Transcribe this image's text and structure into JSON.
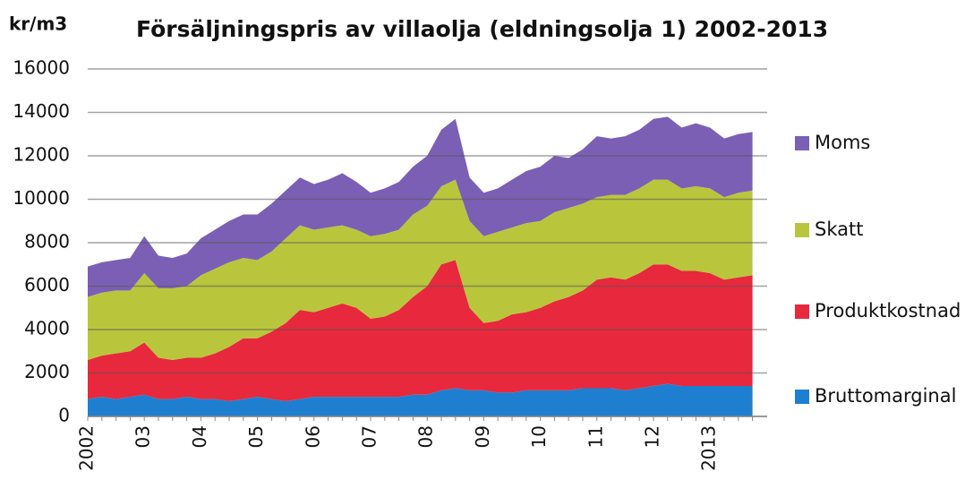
{
  "chart_data": {
    "type": "stacked_area",
    "title": "Försäljningspris av villaolja (eldningsolja 1) 2002-2013",
    "y_label": "kr/m3",
    "categories": [
      "2002",
      null,
      null,
      null,
      "03",
      null,
      null,
      null,
      "04",
      null,
      null,
      null,
      "05",
      null,
      null,
      null,
      "06",
      null,
      null,
      null,
      "07",
      null,
      null,
      null,
      "08",
      null,
      null,
      null,
      "09",
      null,
      null,
      null,
      "10",
      null,
      null,
      null,
      "11",
      null,
      null,
      null,
      "12",
      null,
      null,
      null,
      "2013",
      null,
      null,
      null
    ],
    "series": [
      {
        "name": "Bruttomarginal",
        "color": "#1e7fd0",
        "values": [
          800,
          900,
          800,
          900,
          1000,
          800,
          800,
          900,
          800,
          800,
          700,
          800,
          900,
          800,
          700,
          800,
          900,
          900,
          900,
          900,
          900,
          900,
          900,
          1000,
          1000,
          1200,
          1300,
          1200,
          1200,
          1100,
          1100,
          1200,
          1200,
          1200,
          1200,
          1300,
          1300,
          1300,
          1200,
          1300,
          1400,
          1500,
          1400,
          1400,
          1400,
          1400,
          1400,
          1400
        ]
      },
      {
        "name": "Produktkostnad",
        "color": "#e8283c",
        "values": [
          1800,
          1900,
          2100,
          2100,
          2400,
          1900,
          1800,
          1800,
          1900,
          2100,
          2500,
          2800,
          2700,
          3100,
          3600,
          4100,
          3900,
          4100,
          4300,
          4100,
          3600,
          3700,
          4000,
          4500,
          5000,
          5800,
          5900,
          3800,
          3100,
          3300,
          3600,
          3600,
          3800,
          4100,
          4300,
          4500,
          5000,
          5100,
          5100,
          5300,
          5600,
          5500,
          5300,
          5300,
          5200,
          4900,
          5000,
          5100
        ]
      },
      {
        "name": "Skatt",
        "color": "#b9c63c",
        "values": [
          2900,
          2900,
          2900,
          2800,
          3200,
          3200,
          3300,
          3300,
          3800,
          3900,
          3900,
          3700,
          3600,
          3700,
          3900,
          3900,
          3800,
          3700,
          3600,
          3600,
          3800,
          3800,
          3700,
          3800,
          3700,
          3600,
          3700,
          4000,
          4000,
          4100,
          4000,
          4100,
          4000,
          4100,
          4100,
          4000,
          3800,
          3800,
          3900,
          3900,
          3900,
          3900,
          3800,
          3900,
          3900,
          3800,
          3900,
          3900
        ]
      },
      {
        "name": "Moms",
        "color": "#7b5fb5",
        "values": [
          1400,
          1400,
          1400,
          1500,
          1700,
          1500,
          1400,
          1500,
          1700,
          1800,
          1900,
          2000,
          2100,
          2200,
          2200,
          2200,
          2100,
          2200,
          2400,
          2200,
          2000,
          2100,
          2200,
          2200,
          2300,
          2600,
          2800,
          2000,
          2000,
          2000,
          2200,
          2400,
          2500,
          2600,
          2300,
          2500,
          2800,
          2600,
          2700,
          2700,
          2800,
          2900,
          2800,
          2900,
          2800,
          2700,
          2700,
          2700
        ]
      }
    ],
    "ylim": [
      0,
      16000
    ],
    "yticks": [
      0,
      2000,
      4000,
      6000,
      8000,
      10000,
      12000,
      14000,
      16000
    ],
    "grid": true
  }
}
